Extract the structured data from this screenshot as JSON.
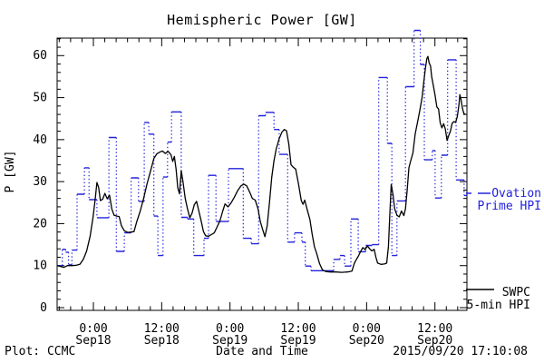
{
  "title": "Hemispheric Power [GW]",
  "y_axis": {
    "label": "P [GW]",
    "tick_labels": [
      "0",
      "10",
      "20",
      "30",
      "40",
      "50",
      "60"
    ]
  },
  "x_axis": {
    "label": "Date and Time",
    "ticks": [
      {
        "time": "0:00",
        "date": "Sep18"
      },
      {
        "time": "12:00",
        "date": "Sep18"
      },
      {
        "time": "0:00",
        "date": "Sep19"
      },
      {
        "time": "12:00",
        "date": "Sep19"
      },
      {
        "time": "0:00",
        "date": "Sep20"
      },
      {
        "time": "12:00",
        "date": "Sep20"
      }
    ]
  },
  "legend": {
    "ovation_line1": "Ovation",
    "ovation_line2": "Prime HPI",
    "swpc_line1": "SWPC",
    "swpc_line2": "5-min HPI"
  },
  "footer": {
    "credit": "Plot: CCMC",
    "generated": "2015/09/20 17:10:08"
  },
  "colors": {
    "ovation": "#2222dd",
    "swpc": "#000000",
    "background": "#ffffff"
  },
  "chart_data": {
    "type": "line",
    "title": "Hemispheric Power [GW]",
    "xlabel": "Date and Time",
    "ylabel": "P [GW]",
    "x_unit": "hours since start of axis (axis spans ~2015-09-17 17:30 UT to ~2015-09-20 17:30 UT)",
    "xlim_hours": [
      0,
      72
    ],
    "ylim": [
      0,
      65
    ],
    "grid": false,
    "legend_position": "right-outside",
    "x_major_tick_hours": [
      6.37,
      18.37,
      30.37,
      42.37,
      54.37,
      66.37
    ],
    "x_major_tick_labels": [
      "0:00 Sep18",
      "12:00 Sep18",
      "0:00 Sep19",
      "12:00 Sep19",
      "0:00 Sep20",
      "12:00 Sep20"
    ],
    "x_minor_tick_interval_hours": 2,
    "y_major_ticks": [
      0,
      10,
      20,
      30,
      40,
      50,
      60
    ],
    "y_minor_tick_interval": 2,
    "series": [
      {
        "name": "Ovation Prime HPI",
        "color": "#2222dd",
        "style": "step (solid horizontal segments, dotted vertical connectors)",
        "units": "GW",
        "step_points_h_gw": [
          [
            0,
            10
          ],
          [
            0.9,
            13.9
          ],
          [
            1.5,
            13.2
          ],
          [
            2.0,
            10.2
          ],
          [
            2.6,
            13.7
          ],
          [
            3.5,
            27
          ],
          [
            4.8,
            33.3
          ],
          [
            5.6,
            25.7
          ],
          [
            7.0,
            21.4
          ],
          [
            9.1,
            40.5
          ],
          [
            10.4,
            13.4
          ],
          [
            11.8,
            17.8
          ],
          [
            13.0,
            30.9
          ],
          [
            14.3,
            25.3
          ],
          [
            15.3,
            44.1
          ],
          [
            16.1,
            41.3
          ],
          [
            17.0,
            21.8
          ],
          [
            17.7,
            12.4
          ],
          [
            18.6,
            31.1
          ],
          [
            19.4,
            39.4
          ],
          [
            20.1,
            46.6
          ],
          [
            21.8,
            21.5
          ],
          [
            22.9,
            21.1
          ],
          [
            24.0,
            12.4
          ],
          [
            25.8,
            16.5
          ],
          [
            26.6,
            31.5
          ],
          [
            27.9,
            20.5
          ],
          [
            30.1,
            33.1
          ],
          [
            32.7,
            16.5
          ],
          [
            34.1,
            15.2
          ],
          [
            35.4,
            45.7
          ],
          [
            36.6,
            46.5
          ],
          [
            38.1,
            42.4
          ],
          [
            39.0,
            36.5
          ],
          [
            40.5,
            15.6
          ],
          [
            41.7,
            17.8
          ],
          [
            43.0,
            15.6
          ],
          [
            43.6,
            9.9
          ],
          [
            44.6,
            8.8
          ],
          [
            48.6,
            11.5
          ],
          [
            49.7,
            12.4
          ],
          [
            50.5,
            9.9
          ],
          [
            51.6,
            21.1
          ],
          [
            52.9,
            13.3
          ],
          [
            54.2,
            14.8
          ],
          [
            55.3,
            15.0
          ],
          [
            56.5,
            54.8
          ],
          [
            58.0,
            39.1
          ],
          [
            58.8,
            12.4
          ],
          [
            59.7,
            25.4
          ],
          [
            61.2,
            52.6
          ],
          [
            62.7,
            66
          ],
          [
            63.8,
            57.9
          ],
          [
            64.5,
            35.2
          ],
          [
            65.9,
            37.4
          ],
          [
            66.4,
            26.1
          ],
          [
            67.5,
            36.3
          ],
          [
            68.6,
            59
          ],
          [
            70.1,
            30.4
          ],
          [
            71.5,
            26.7
          ]
        ]
      },
      {
        "name": "SWPC 5-min HPI",
        "color": "#000000",
        "style": "solid line",
        "units": "GW",
        "points_h_gw": [
          [
            0,
            10
          ],
          [
            0.6,
            9.8
          ],
          [
            1.2,
            9.6
          ],
          [
            1.8,
            10
          ],
          [
            2.6,
            10
          ],
          [
            3.4,
            10.1
          ],
          [
            4.0,
            10.3
          ],
          [
            4.6,
            11.5
          ],
          [
            5.2,
            13.5
          ],
          [
            5.8,
            17
          ],
          [
            6.3,
            21.5
          ],
          [
            6.7,
            26
          ],
          [
            7.0,
            29.8
          ],
          [
            7.3,
            28.6
          ],
          [
            7.6,
            25.5
          ],
          [
            8.0,
            25.8
          ],
          [
            8.4,
            27.2
          ],
          [
            8.8,
            25.9
          ],
          [
            9.2,
            26.8
          ],
          [
            9.6,
            23.5
          ],
          [
            10.0,
            22.0
          ],
          [
            10.5,
            21.8
          ],
          [
            10.9,
            21.7
          ],
          [
            11.3,
            19.5
          ],
          [
            11.8,
            18.3
          ],
          [
            12.4,
            17.9
          ],
          [
            13.0,
            18.0
          ],
          [
            13.5,
            18.1
          ],
          [
            14.0,
            20.5
          ],
          [
            14.6,
            23.0
          ],
          [
            15.2,
            26.0
          ],
          [
            15.8,
            29.5
          ],
          [
            16.4,
            32.5
          ],
          [
            17.0,
            35.5
          ],
          [
            17.5,
            36.6
          ],
          [
            18.0,
            37.0
          ],
          [
            18.5,
            37.3
          ],
          [
            19.0,
            36.7
          ],
          [
            19.5,
            37.2
          ],
          [
            20.0,
            36.4
          ],
          [
            20.3,
            34.8
          ],
          [
            20.6,
            36.0
          ],
          [
            20.9,
            33.0
          ],
          [
            21.2,
            28.5
          ],
          [
            21.5,
            27.1
          ],
          [
            21.8,
            32.6
          ],
          [
            22.1,
            30.0
          ],
          [
            22.5,
            26.0
          ],
          [
            22.9,
            23.5
          ],
          [
            23.3,
            21.4
          ],
          [
            23.7,
            22.5
          ],
          [
            24.1,
            24.5
          ],
          [
            24.5,
            25.3
          ],
          [
            24.9,
            23.0
          ],
          [
            25.3,
            20.7
          ],
          [
            25.7,
            18.1
          ],
          [
            26.1,
            17.1
          ],
          [
            26.6,
            17.0
          ],
          [
            27.1,
            17.4
          ],
          [
            27.6,
            17.8
          ],
          [
            28.1,
            19.2
          ],
          [
            28.6,
            20.7
          ],
          [
            29.1,
            23.0
          ],
          [
            29.5,
            24.7
          ],
          [
            30.0,
            24.0
          ],
          [
            30.5,
            24.8
          ],
          [
            31.1,
            26.2
          ],
          [
            31.7,
            27.8
          ],
          [
            32.3,
            29.0
          ],
          [
            32.8,
            29.4
          ],
          [
            33.3,
            29.0
          ],
          [
            33.8,
            27.6
          ],
          [
            34.3,
            26.0
          ],
          [
            34.8,
            25.6
          ],
          [
            35.3,
            23.5
          ],
          [
            35.7,
            20.5
          ],
          [
            36.1,
            18.6
          ],
          [
            36.5,
            16.9
          ],
          [
            36.9,
            19.5
          ],
          [
            37.3,
            25.0
          ],
          [
            37.7,
            31.0
          ],
          [
            38.1,
            35.0
          ],
          [
            38.5,
            37.8
          ],
          [
            39.0,
            40.2
          ],
          [
            39.5,
            41.8
          ],
          [
            39.9,
            42.4
          ],
          [
            40.3,
            42.1
          ],
          [
            40.7,
            39.0
          ],
          [
            41.1,
            34.0
          ],
          [
            41.5,
            33.4
          ],
          [
            41.9,
            33.0
          ],
          [
            42.4,
            29.5
          ],
          [
            42.9,
            25.5
          ],
          [
            43.2,
            24.6
          ],
          [
            43.5,
            25.6
          ],
          [
            43.9,
            23.5
          ],
          [
            44.4,
            21.0
          ],
          [
            44.8,
            17.5
          ],
          [
            45.2,
            14.5
          ],
          [
            45.6,
            12.9
          ],
          [
            46.1,
            10.5
          ],
          [
            46.6,
            9.0
          ],
          [
            47.2,
            8.6
          ],
          [
            48.0,
            8.5
          ],
          [
            49.0,
            8.5
          ],
          [
            50.0,
            8.4
          ],
          [
            51.0,
            8.5
          ],
          [
            51.8,
            8.7
          ],
          [
            52.2,
            10.5
          ],
          [
            52.5,
            11.3
          ],
          [
            52.9,
            12.2
          ],
          [
            53.3,
            13.3
          ],
          [
            53.7,
            14.3
          ],
          [
            54.1,
            13.8
          ],
          [
            54.5,
            14.7
          ],
          [
            54.9,
            14.0
          ],
          [
            55.3,
            13.5
          ],
          [
            55.7,
            13.9
          ],
          [
            56.0,
            12.0
          ],
          [
            56.3,
            10.6
          ],
          [
            56.9,
            10.3
          ],
          [
            57.5,
            10.4
          ],
          [
            57.9,
            10.6
          ],
          [
            58.2,
            14.5
          ],
          [
            58.45,
            22.4
          ],
          [
            58.7,
            29.3
          ],
          [
            59.0,
            27.0
          ],
          [
            59.3,
            23.5
          ],
          [
            59.7,
            22.0
          ],
          [
            60.1,
            21.6
          ],
          [
            60.5,
            23.0
          ],
          [
            60.9,
            21.9
          ],
          [
            61.2,
            23.5
          ],
          [
            61.5,
            28.0
          ],
          [
            61.8,
            33.3
          ],
          [
            62.1,
            34.9
          ],
          [
            62.5,
            36.8
          ],
          [
            62.9,
            41.3
          ],
          [
            63.3,
            44.0
          ],
          [
            63.7,
            46.8
          ],
          [
            64.1,
            50.0
          ],
          [
            64.4,
            53.5
          ],
          [
            64.7,
            57.0
          ],
          [
            64.95,
            59.3
          ],
          [
            65.15,
            59.8
          ],
          [
            65.35,
            58.3
          ],
          [
            65.6,
            57.5
          ],
          [
            65.8,
            55.0
          ],
          [
            66.1,
            52.8
          ],
          [
            66.4,
            50.5
          ],
          [
            66.7,
            47.8
          ],
          [
            67.0,
            47.3
          ],
          [
            67.3,
            44.0
          ],
          [
            67.6,
            42.8
          ],
          [
            67.9,
            43.8
          ],
          [
            68.2,
            42.5
          ],
          [
            68.5,
            39.8
          ],
          [
            68.8,
            41.0
          ],
          [
            69.1,
            42.0
          ],
          [
            69.4,
            43.9
          ],
          [
            69.7,
            44.3
          ],
          [
            70.0,
            44.1
          ],
          [
            70.3,
            45.5
          ],
          [
            70.6,
            48.5
          ],
          [
            70.75,
            50.7
          ],
          [
            70.95,
            49.5
          ],
          [
            71.2,
            47.5
          ],
          [
            71.45,
            46.2
          ],
          [
            71.7,
            46.1
          ]
        ]
      }
    ]
  }
}
